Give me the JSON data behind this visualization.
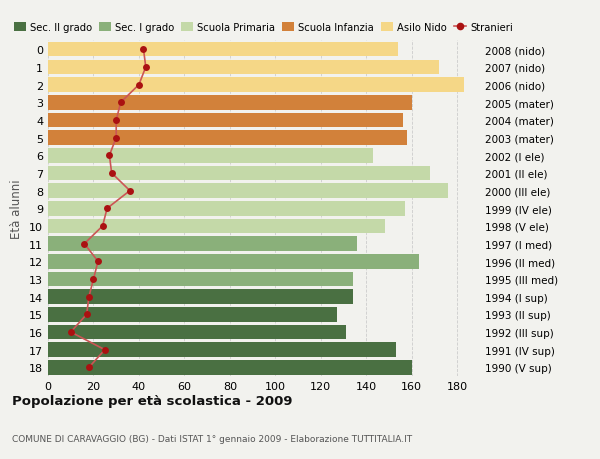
{
  "ages": [
    18,
    17,
    16,
    15,
    14,
    13,
    12,
    11,
    10,
    9,
    8,
    7,
    6,
    5,
    4,
    3,
    2,
    1,
    0
  ],
  "bar_values": [
    160,
    153,
    131,
    127,
    134,
    134,
    163,
    136,
    148,
    157,
    176,
    168,
    143,
    158,
    156,
    160,
    183,
    172,
    154
  ],
  "stranieri": [
    18,
    25,
    10,
    17,
    18,
    20,
    22,
    16,
    24,
    26,
    36,
    28,
    27,
    30,
    30,
    32,
    40,
    43,
    42
  ],
  "right_labels": [
    "1990 (V sup)",
    "1991 (IV sup)",
    "1992 (III sup)",
    "1993 (II sup)",
    "1994 (I sup)",
    "1995 (III med)",
    "1996 (II med)",
    "1997 (I med)",
    "1998 (V ele)",
    "1999 (IV ele)",
    "2000 (III ele)",
    "2001 (II ele)",
    "2002 (I ele)",
    "2003 (mater)",
    "2004 (mater)",
    "2005 (mater)",
    "2006 (nido)",
    "2007 (nido)",
    "2008 (nido)"
  ],
  "bar_colors": [
    "#4a7042",
    "#4a7042",
    "#4a7042",
    "#4a7042",
    "#4a7042",
    "#8ab07a",
    "#8ab07a",
    "#8ab07a",
    "#c4d9a8",
    "#c4d9a8",
    "#c4d9a8",
    "#c4d9a8",
    "#c4d9a8",
    "#d2813a",
    "#d2813a",
    "#d2813a",
    "#f5d787",
    "#f5d787",
    "#f5d787"
  ],
  "legend_labels": [
    "Sec. II grado",
    "Sec. I grado",
    "Scuola Primaria",
    "Scuola Infanzia",
    "Asilo Nido",
    "Stranieri"
  ],
  "legend_colors": [
    "#4a7042",
    "#8ab07a",
    "#c4d9a8",
    "#d2813a",
    "#f5d787",
    "#b22222"
  ],
  "ylabel_left": "Età alunni",
  "title": "Popolazione per età scolastica - 2009",
  "subtitle": "COMUNE DI CARAVAGGIO (BG) - Dati ISTAT 1° gennaio 2009 - Elaborazione TUTTITALIA.IT",
  "xlim": [
    0,
    190
  ],
  "xticks": [
    0,
    20,
    40,
    60,
    80,
    100,
    120,
    140,
    160,
    180
  ],
  "bg_color": "#f2f2ee",
  "stranieri_color": "#aa1111",
  "stranieri_line_color": "#cc5555"
}
